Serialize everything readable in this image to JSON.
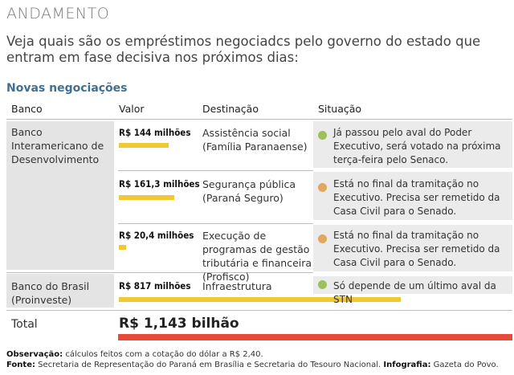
{
  "title": "ANDAMENTO",
  "intro": "Veja quais são os empréstimos negociadcs pelo governo do estado que entram em fase decisiva nos próximos dias:",
  "section_title": "Novas negociações",
  "columns": {
    "bank": "Banco",
    "value": "Valor",
    "destination": "Destinação",
    "situation": "Situação"
  },
  "banks": [
    {
      "name": "Banco Interamericano de Desenvolvimento"
    },
    {
      "name": "Banco do Brasil (Proinveste)"
    }
  ],
  "rows": [
    {
      "value": "R$ 144 milhões",
      "amount_millions": 144,
      "destination": "Assistência social (Família Paranaense)",
      "situation": "Já passou pelo aval do Poder Executivo, será votado na próxima terça-feira pelo Senaco.",
      "status_color": "#9cc15a"
    },
    {
      "value": "R$ 161,3 milhões",
      "amount_millions": 161.3,
      "destination": "Segurança pública (Paraná Seguro)",
      "situation": "Está no final da tramitação no Executivo. Precisa ser remetido da Casa Civil para o Senado.",
      "status_color": "#e0a85a"
    },
    {
      "value": "R$ 20,4 milhões",
      "amount_millions": 20.4,
      "destination": "Execução de programas de gestão tributária e financeira (Profisco)",
      "situation": "Está no final da tramitação no Executivo. Precisa ser remetido da Casa Civil para o Senado.",
      "status_color": "#e0a85a"
    },
    {
      "value": "R$ 817 milhões",
      "amount_millions": 817,
      "destination": "Infraestrutura",
      "situation": "Só depende de um último aval da STN",
      "status_color": "#9cc15a"
    }
  ],
  "total": {
    "label": "Total",
    "value": "R$ 1,143 bilhão",
    "amount_millions": 1143
  },
  "notes": {
    "obs_label": "Observação:",
    "obs_text": " cálculos feitos com a cotação do dólar a R$ 2,40.",
    "source_label": "Fonte:",
    "source_text": " Secretaria de Representação do Paraná em Brasília e Secretaria do Tesouro Nacional.",
    "infografia_label": "Infografia:",
    "infografia_text": " Gazeta do Povo."
  },
  "colors": {
    "bar": "#f0c832",
    "total_bar": "#e84a3a",
    "section": "#3f6f95"
  }
}
